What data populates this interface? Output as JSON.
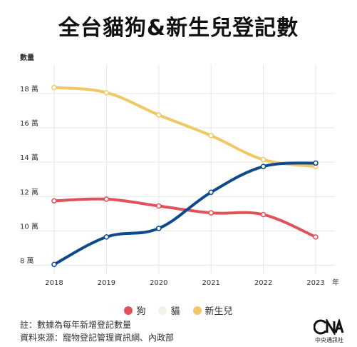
{
  "title": "全台貓狗&新生兒登記數",
  "chart_data": {
    "type": "line",
    "ylabel": "數量",
    "xlabel": "年",
    "x": [
      "2018",
      "2019",
      "2020",
      "2021",
      "2022",
      "2023"
    ],
    "y_ticks": [
      "8 萬",
      "10 萬",
      "12 萬",
      "14 萬",
      "16 萬",
      "18 萬"
    ],
    "y_tick_values": [
      8,
      10,
      12,
      14,
      16,
      18
    ],
    "ylim": [
      7.4,
      19.2
    ],
    "grid": true,
    "legend_position": "bottom",
    "series": [
      {
        "name": "狗",
        "color": "#e0525a",
        "values": [
          11.5,
          11.6,
          11.2,
          10.8,
          10.7,
          9.4
        ]
      },
      {
        "name": "貓",
        "color": "#0c4a8c",
        "values": [
          7.8,
          9.4,
          9.9,
          12.0,
          13.5,
          13.7
        ]
      },
      {
        "name": "新生兒",
        "color": "#f0c866",
        "values": [
          18.1,
          17.8,
          16.5,
          15.3,
          13.9,
          13.5
        ]
      }
    ]
  },
  "notes": {
    "note1": "註：數據為每年新增登記數量",
    "note2": "資料來源：寵物登記管理資訊網、內政部"
  },
  "logo": {
    "mark": "CNA",
    "text": "中央通訊社"
  }
}
